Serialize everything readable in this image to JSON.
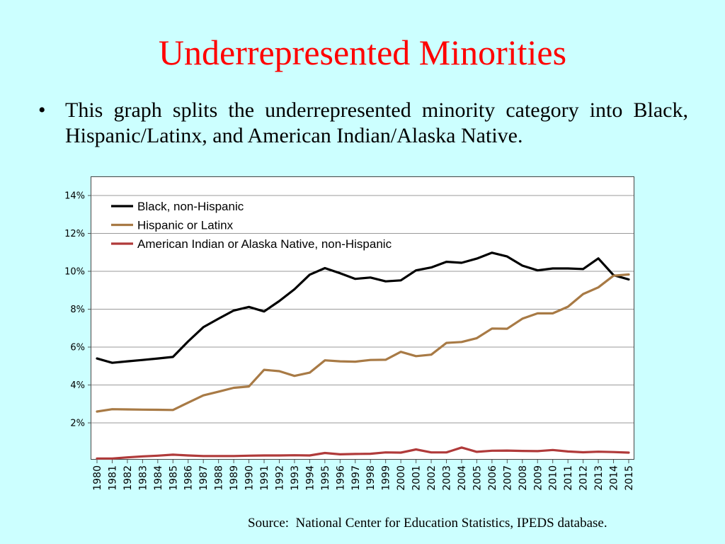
{
  "slide": {
    "title": "Underrepresented Minorities",
    "bullet_symbol": "•",
    "bullet_text": "This graph splits the underrepresented minority category into Black, Hispanic/Latinx, and American Indian/Alaska Native.",
    "source": "Source:  National Center for Education Statistics, IPEDS database."
  },
  "chart_data": {
    "type": "line",
    "title": "",
    "xlabel": "",
    "ylabel": "",
    "ylim": [
      0,
      14.5
    ],
    "yticks": [
      2,
      4,
      6,
      8,
      10,
      12,
      14
    ],
    "ytick_labels": [
      "2%",
      "4%",
      "6%",
      "8%",
      "10%",
      "12%",
      "14%"
    ],
    "grid": true,
    "legend_position": "top-left",
    "x": [
      "1980",
      "1981",
      "1982",
      "1983",
      "1984",
      "1985",
      "1986",
      "1987",
      "1988",
      "1989",
      "1990",
      "1991",
      "1992",
      "1993",
      "1994",
      "1995",
      "1996",
      "1997",
      "1998",
      "1999",
      "2000",
      "2001",
      "2002",
      "2003",
      "2004",
      "2005",
      "2006",
      "2007",
      "2008",
      "2009",
      "2010",
      "2011",
      "2012",
      "2013",
      "2014",
      "2015"
    ],
    "series": [
      {
        "name": "Black, non-Hispanic",
        "color": "#000000",
        "values": [
          5.4,
          5.17,
          5.25,
          5.32,
          5.4,
          5.48,
          6.3,
          7.05,
          7.5,
          7.93,
          8.12,
          7.88,
          8.43,
          9.05,
          9.82,
          10.17,
          9.9,
          9.6,
          9.67,
          9.47,
          9.52,
          10.05,
          10.2,
          10.5,
          10.45,
          10.67,
          10.98,
          10.78,
          10.3,
          10.05,
          10.15,
          10.15,
          10.12,
          10.68,
          9.8,
          9.57
        ]
      },
      {
        "name": "Hispanic or Latinx",
        "color": "#a87a45",
        "values": [
          2.6,
          2.72,
          2.71,
          2.7,
          2.69,
          2.68,
          3.07,
          3.45,
          3.65,
          3.85,
          3.92,
          4.8,
          4.73,
          4.48,
          4.65,
          5.3,
          5.25,
          5.23,
          5.32,
          5.33,
          5.75,
          5.52,
          5.6,
          6.22,
          6.27,
          6.47,
          6.98,
          6.97,
          7.5,
          7.78,
          7.78,
          8.13,
          8.8,
          9.15,
          9.77,
          9.83
        ]
      },
      {
        "name": "American Indian or Alaska Native, non-Hispanic",
        "color": "#b03a3a",
        "values": [
          0.12,
          0.12,
          0.18,
          0.23,
          0.27,
          0.32,
          0.28,
          0.25,
          0.25,
          0.25,
          0.27,
          0.28,
          0.28,
          0.29,
          0.28,
          0.41,
          0.34,
          0.36,
          0.37,
          0.44,
          0.43,
          0.6,
          0.44,
          0.44,
          0.7,
          0.47,
          0.53,
          0.54,
          0.52,
          0.51,
          0.57,
          0.49,
          0.45,
          0.48,
          0.46,
          0.43
        ]
      }
    ]
  }
}
